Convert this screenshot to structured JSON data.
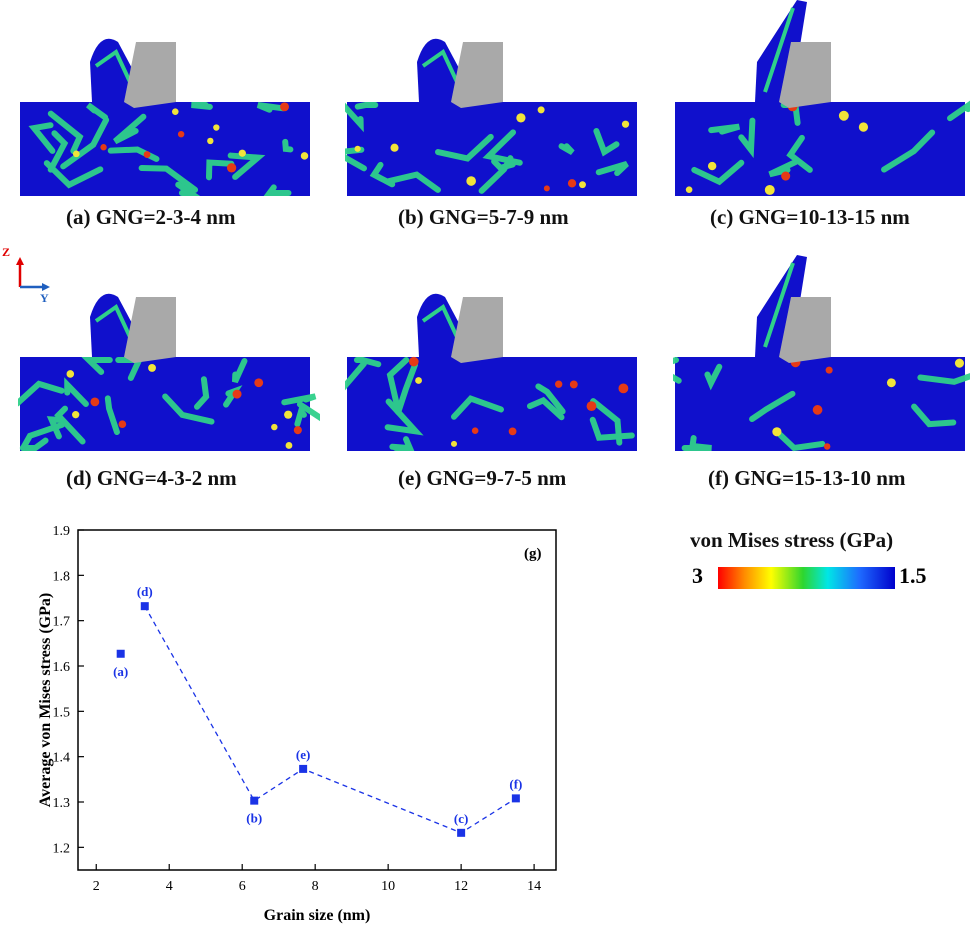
{
  "panels": [
    {
      "id": "a",
      "caption": "(a) GNG=2-3-4 nm",
      "chip_style": "short"
    },
    {
      "id": "b",
      "caption": "(b) GNG=5-7-9 nm",
      "chip_style": "short"
    },
    {
      "id": "c",
      "caption": "(c) GNG=10-13-15 nm",
      "chip_style": "long"
    },
    {
      "id": "d",
      "caption": "(d) GNG=4-3-2 nm",
      "chip_style": "short"
    },
    {
      "id": "e",
      "caption": "(e) GNG=9-7-5 nm",
      "chip_style": "short"
    },
    {
      "id": "f",
      "caption": "(f) GNG=15-13-10 nm",
      "chip_style": "long"
    }
  ],
  "axis_key": {
    "z": "Z",
    "y": "Y",
    "z_color": "#e00000",
    "y_color": "#1f5fbf"
  },
  "colorbar": {
    "title": "von Mises stress (GPa)",
    "min_label": "3",
    "max_label": "1.5"
  },
  "colors": {
    "matrix": "#1010cc",
    "boundary": "#2fd08a",
    "hot": "#e63a16",
    "warm": "#f2e43a",
    "tool": "#a9a9a9",
    "series": "#1a33e6"
  },
  "chart_data": {
    "type": "scatter",
    "panel_label": "(g)",
    "xlabel": "Grain size (nm)",
    "ylabel": "Average von Mises stress (GPa)",
    "xlim": [
      1.5,
      14.6
    ],
    "ylim": [
      1.15,
      1.9
    ],
    "xticks": [
      2,
      4,
      6,
      8,
      10,
      12,
      14
    ],
    "yticks": [
      1.2,
      1.3,
      1.4,
      1.5,
      1.6,
      1.7,
      1.8,
      1.9
    ],
    "points": [
      {
        "x": 2.67,
        "y": 1.627,
        "label": "(a)",
        "label_pos": "below"
      },
      {
        "x": 3.33,
        "y": 1.732,
        "label": "(d)",
        "label_pos": "above"
      },
      {
        "x": 6.33,
        "y": 1.303,
        "label": "(b)",
        "label_pos": "below"
      },
      {
        "x": 7.67,
        "y": 1.373,
        "label": "(e)",
        "label_pos": "above"
      },
      {
        "x": 12.0,
        "y": 1.232,
        "label": "(c)",
        "label_pos": "above"
      },
      {
        "x": 13.5,
        "y": 1.308,
        "label": "(f)",
        "label_pos": "above"
      }
    ],
    "dashed_line_points": [
      "(d)",
      "(b)",
      "(e)",
      "(c)",
      "(f)"
    ]
  }
}
